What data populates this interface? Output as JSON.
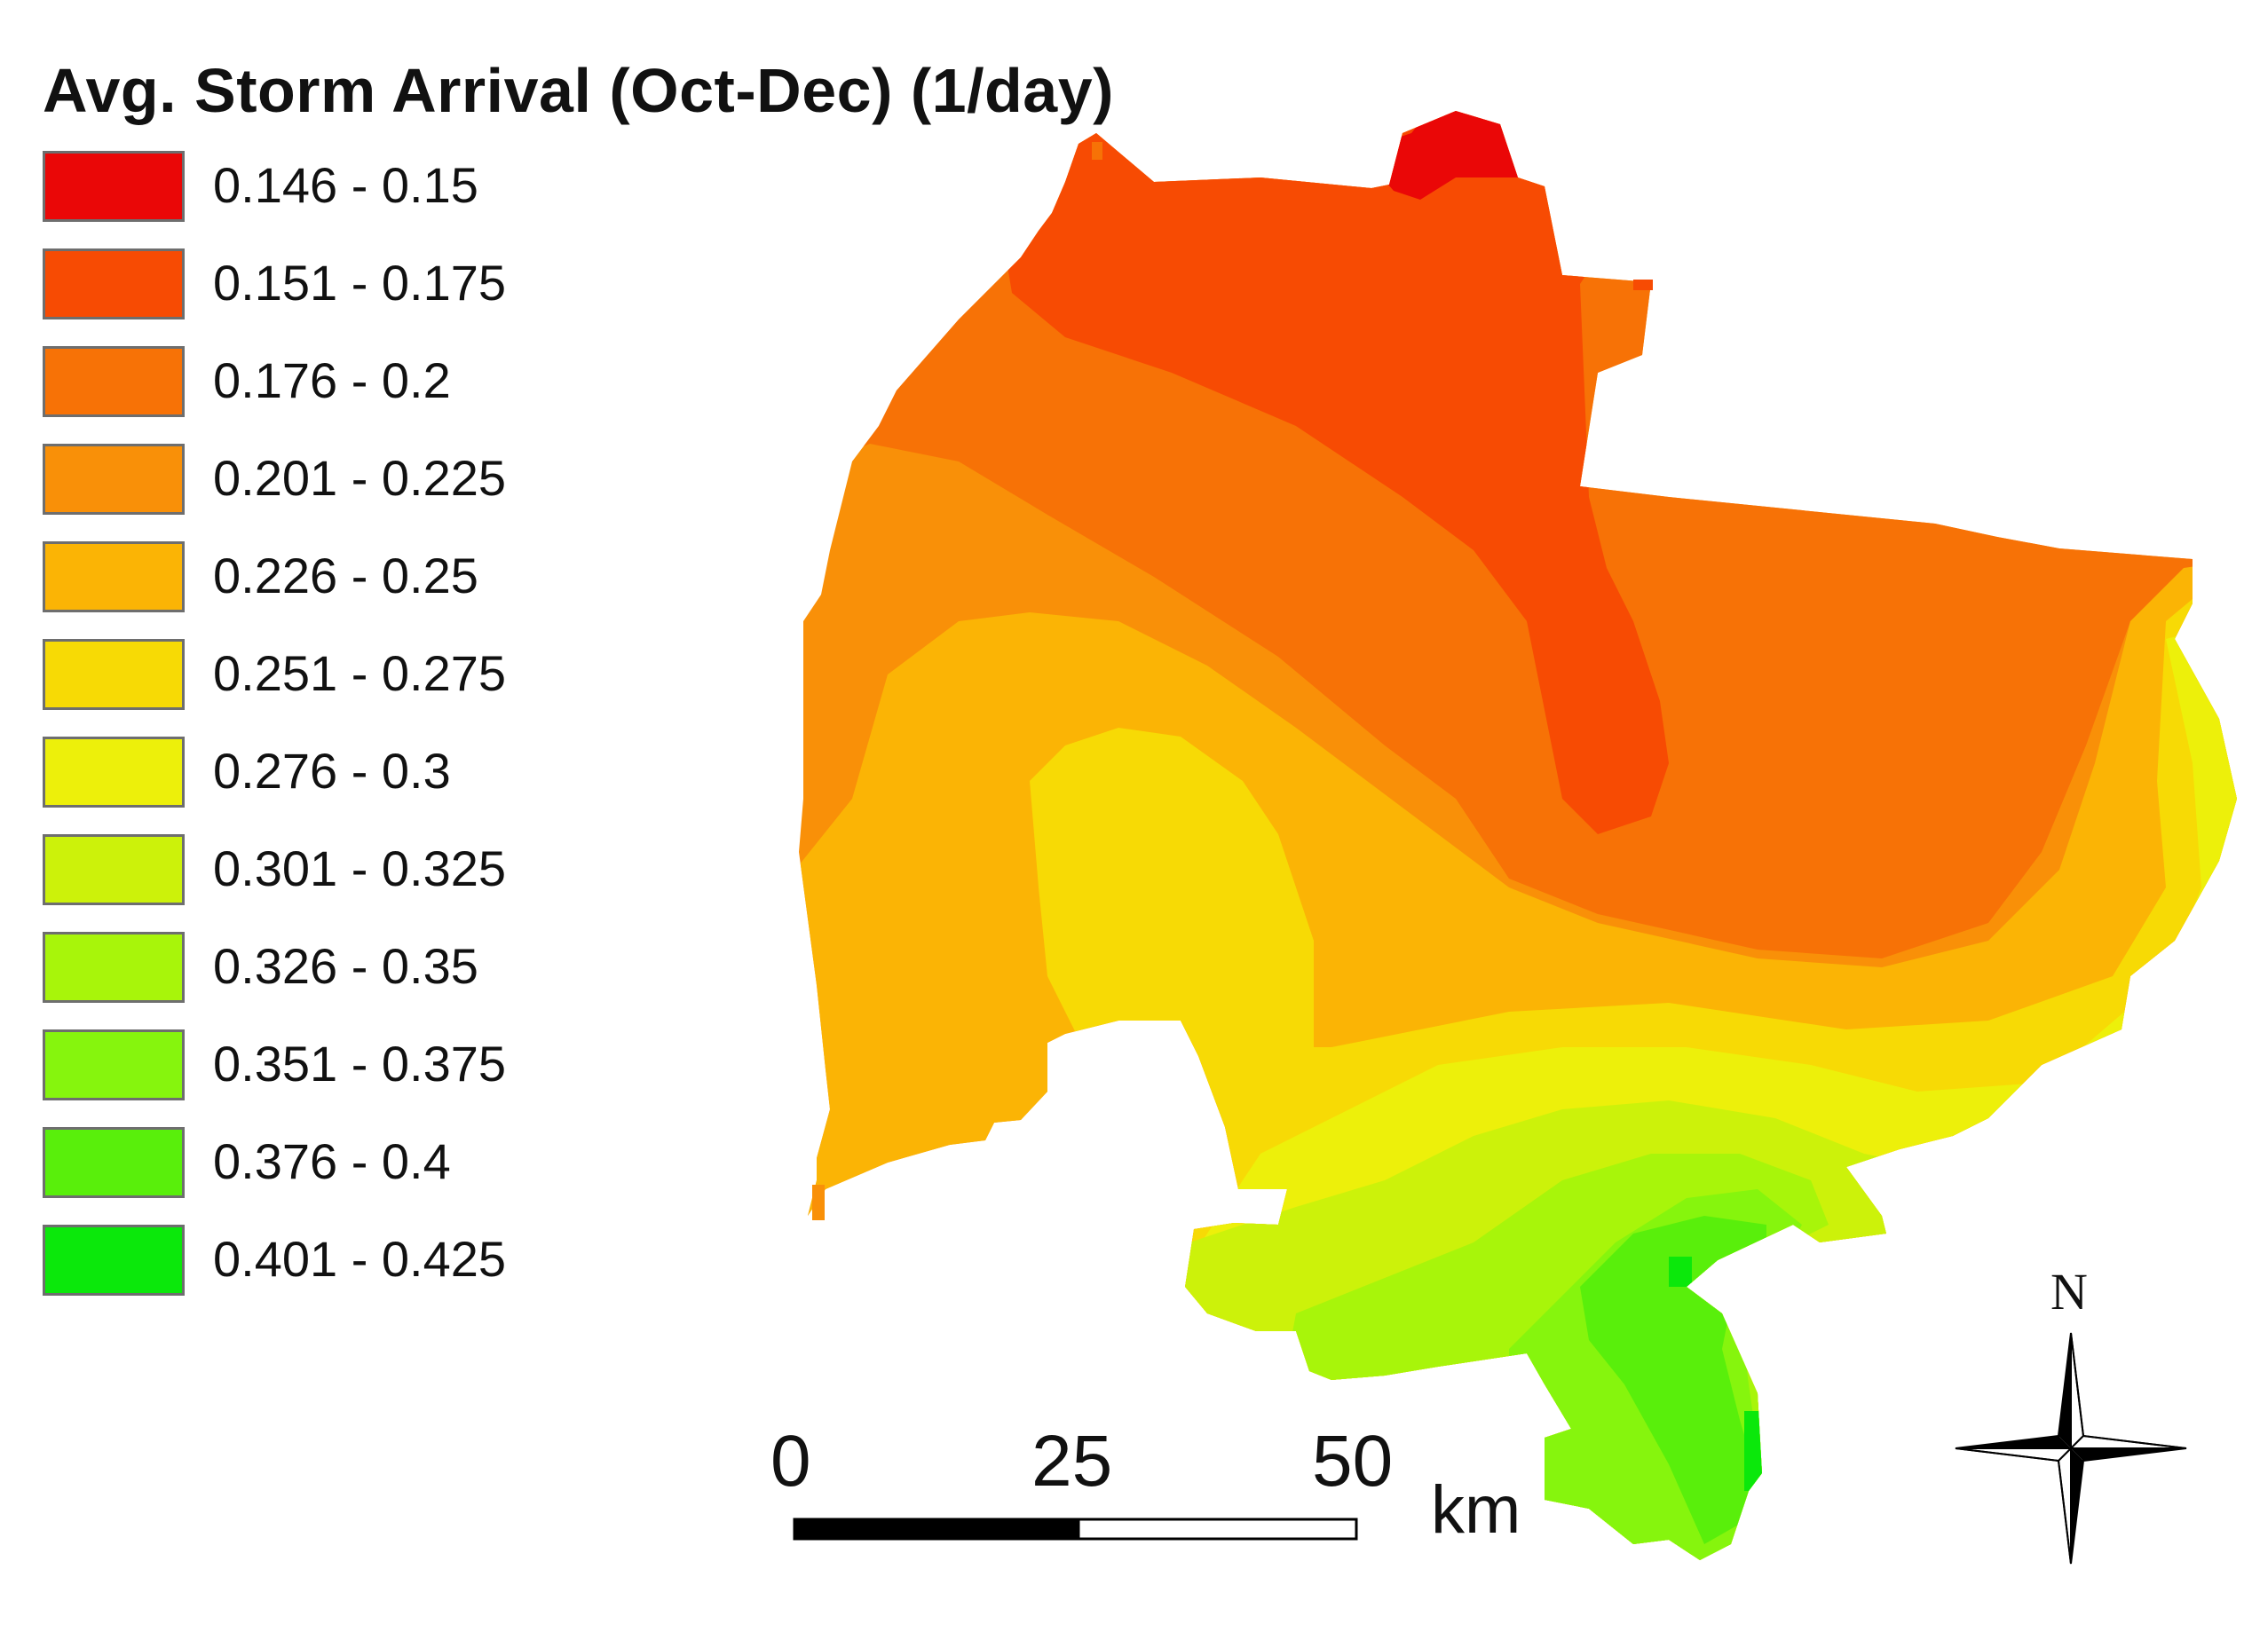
{
  "map": {
    "title": "Avg. Storm Arrival (Oct-Dec) (1/day)"
  },
  "legend": {
    "items": [
      {
        "label": "0.146 - 0.15",
        "color": "#EA0707"
      },
      {
        "label": "0.151 - 0.175",
        "color": "#F74B03"
      },
      {
        "label": "0.176 - 0.2",
        "color": "#F77206"
      },
      {
        "label": "0.201 - 0.225",
        "color": "#F99008"
      },
      {
        "label": "0.226 - 0.25",
        "color": "#FBB405"
      },
      {
        "label": "0.251 - 0.275",
        "color": "#F7DA05"
      },
      {
        "label": "0.276 - 0.3",
        "color": "#EDF00A"
      },
      {
        "label": "0.301 - 0.325",
        "color": "#CCF20A"
      },
      {
        "label": "0.326 - 0.35",
        "color": "#A8F50A"
      },
      {
        "label": "0.351 - 0.375",
        "color": "#86F50D"
      },
      {
        "label": "0.376 - 0.4",
        "color": "#59EF0B"
      },
      {
        "label": "0.401 - 0.425",
        "color": "#0BE80B"
      }
    ]
  },
  "scale_bar": {
    "ticks": [
      "0",
      "25",
      "50"
    ],
    "unit": "km"
  },
  "north_arrow": {
    "label": "N",
    "icon": "north-arrow-icon"
  }
}
